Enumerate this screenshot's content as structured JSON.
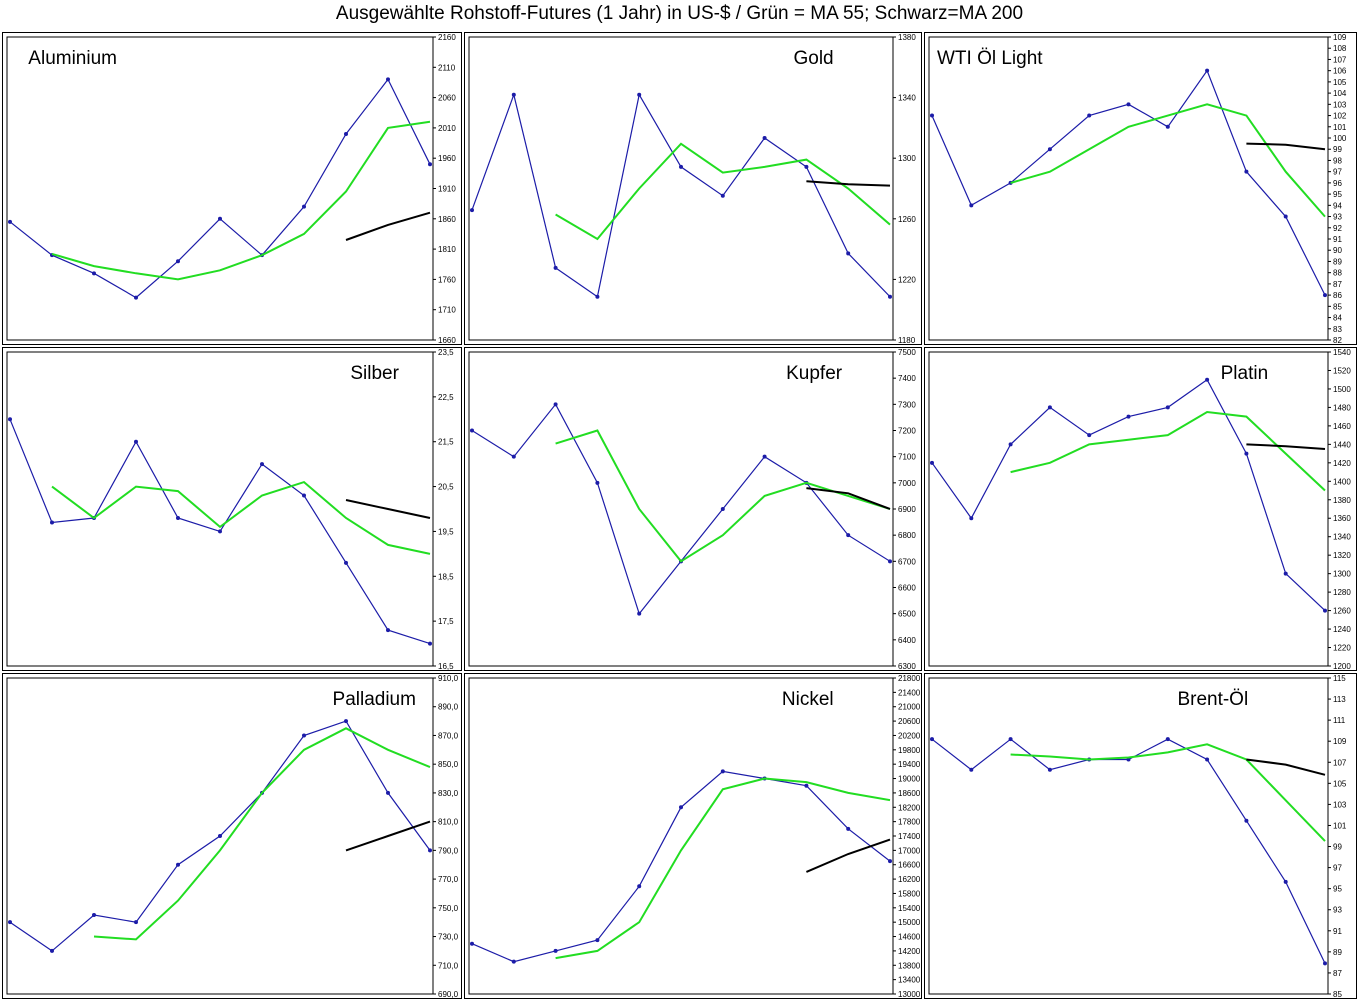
{
  "page": {
    "title": "Ausgewählte Rohstoff-Futures (1 Jahr) in US-$ / Grün = MA 55; Schwarz=MA 200"
  },
  "colors": {
    "price": "#1c1ca8",
    "ma55": "#22dd22",
    "ma200": "#000000"
  },
  "chart_data": [
    {
      "type": "line",
      "title": "Aluminium",
      "ylim": [
        1660,
        2160
      ],
      "yticks": [
        "2160",
        "2110",
        "2060",
        "2010",
        "1960",
        "1910",
        "1860",
        "1810",
        "1760",
        "1710",
        "1660"
      ],
      "x": [
        0,
        10,
        20,
        30,
        40,
        50,
        60,
        70,
        80,
        90,
        100
      ],
      "series": [
        {
          "values": [
            1855,
            1800,
            1770,
            1730,
            1790,
            1860,
            1800,
            1880,
            2000,
            2090,
            1950
          ]
        },
        {
          "values": [
            null,
            1802,
            1782,
            1770,
            1760,
            1775,
            1800,
            1835,
            1905,
            2010,
            2020
          ]
        },
        {
          "values": [
            null,
            null,
            null,
            null,
            null,
            null,
            null,
            null,
            1825,
            1850,
            1870
          ]
        }
      ]
    },
    {
      "type": "line",
      "title": "Gold",
      "ylim": [
        1180,
        1390
      ],
      "yticks": [
        "1380",
        "1340",
        "1300",
        "1260",
        "1220",
        "1180"
      ],
      "x": [
        0,
        10,
        20,
        30,
        40,
        50,
        60,
        70,
        80,
        90,
        100
      ],
      "series": [
        {
          "values": [
            1270,
            1350,
            1230,
            1210,
            1350,
            1300,
            1280,
            1320,
            1300,
            1240,
            1210
          ]
        },
        {
          "values": [
            null,
            null,
            1267,
            1250,
            1285,
            1316,
            1296,
            1300,
            1305,
            1285,
            1260
          ]
        },
        {
          "values": [
            null,
            null,
            null,
            null,
            null,
            null,
            null,
            null,
            1290,
            1288,
            1287
          ]
        }
      ]
    },
    {
      "type": "line",
      "title": "WTI Öl Light",
      "ylim": [
        82,
        109
      ],
      "yticks": [
        "109",
        "108",
        "107",
        "106",
        "105",
        "104",
        "103",
        "102",
        "101",
        "100",
        "99",
        "98",
        "97",
        "96",
        "95",
        "94",
        "93",
        "92",
        "91",
        "90",
        "89",
        "88",
        "87",
        "86",
        "85",
        "84",
        "83",
        "82"
      ],
      "x": [
        0,
        10,
        20,
        30,
        40,
        50,
        60,
        70,
        80,
        90,
        100
      ],
      "series": [
        {
          "values": [
            102,
            94,
            96,
            99,
            102,
            103,
            101,
            106,
            97,
            93,
            86
          ]
        },
        {
          "values": [
            null,
            null,
            96,
            97,
            99,
            101,
            102,
            103,
            102,
            97,
            93
          ]
        },
        {
          "values": [
            null,
            null,
            null,
            null,
            null,
            null,
            null,
            null,
            99.5,
            99.4,
            99
          ]
        }
      ]
    },
    {
      "type": "line",
      "title": "Silber",
      "ylim": [
        16.5,
        23.5
      ],
      "yticks": [
        "23,5",
        "22,5",
        "21,5",
        "20,5",
        "19,5",
        "18,5",
        "17,5",
        "16,5"
      ],
      "x": [
        0,
        10,
        20,
        30,
        40,
        50,
        60,
        70,
        80,
        90,
        100
      ],
      "series": [
        {
          "values": [
            22,
            19.7,
            19.8,
            21.5,
            19.8,
            19.5,
            21,
            20.3,
            18.8,
            17.3,
            17
          ]
        },
        {
          "values": [
            null,
            20.5,
            19.8,
            20.5,
            20.4,
            19.6,
            20.3,
            20.6,
            19.8,
            19.2,
            19
          ]
        },
        {
          "values": [
            null,
            null,
            null,
            null,
            null,
            null,
            null,
            null,
            20.2,
            20,
            19.8
          ]
        }
      ]
    },
    {
      "type": "line",
      "title": "Kupfer",
      "ylim": [
        6300,
        7500
      ],
      "yticks": [
        "7500",
        "7400",
        "7300",
        "7200",
        "7100",
        "7000",
        "6900",
        "6800",
        "6700",
        "6600",
        "6500",
        "6400",
        "6300"
      ],
      "x": [
        0,
        10,
        20,
        30,
        40,
        50,
        60,
        70,
        80,
        90,
        100
      ],
      "series": [
        {
          "values": [
            7200,
            7100,
            7300,
            7000,
            6500,
            6700,
            6900,
            7100,
            7000,
            6800,
            6700
          ]
        },
        {
          "values": [
            null,
            null,
            7150,
            7200,
            6900,
            6700,
            6800,
            6950,
            7000,
            6950,
            6900
          ]
        },
        {
          "values": [
            null,
            null,
            null,
            null,
            null,
            null,
            null,
            null,
            6980,
            6960,
            6900
          ]
        }
      ]
    },
    {
      "type": "line",
      "title": "Platin",
      "ylim": [
        1200,
        1540
      ],
      "yticks": [
        "1540",
        "1520",
        "1500",
        "1480",
        "1460",
        "1440",
        "1420",
        "1400",
        "1380",
        "1360",
        "1340",
        "1320",
        "1300",
        "1280",
        "1260",
        "1240",
        "1220",
        "1200"
      ],
      "x": [
        0,
        10,
        20,
        30,
        40,
        50,
        60,
        70,
        80,
        90,
        100
      ],
      "series": [
        {
          "values": [
            1420,
            1360,
            1440,
            1480,
            1450,
            1470,
            1480,
            1510,
            1430,
            1300,
            1260
          ]
        },
        {
          "values": [
            null,
            null,
            1410,
            1420,
            1440,
            1445,
            1450,
            1475,
            1470,
            1430,
            1390
          ]
        },
        {
          "values": [
            null,
            null,
            null,
            null,
            null,
            null,
            null,
            null,
            1440,
            1438,
            1435
          ]
        }
      ]
    },
    {
      "type": "line",
      "title": "Palladium",
      "ylim": [
        690,
        910
      ],
      "yticks": [
        "910,0",
        "890,0",
        "870,0",
        "850,0",
        "830,0",
        "810,0",
        "790,0",
        "770,0",
        "750,0",
        "730,0",
        "710,0",
        "690,0"
      ],
      "x": [
        0,
        10,
        20,
        30,
        40,
        50,
        60,
        70,
        80,
        90,
        100
      ],
      "series": [
        {
          "values": [
            740,
            720,
            745,
            740,
            780,
            800,
            830,
            870,
            880,
            830,
            790
          ]
        },
        {
          "values": [
            null,
            null,
            730,
            728,
            755,
            790,
            830,
            860,
            875,
            860,
            848
          ]
        },
        {
          "values": [
            null,
            null,
            null,
            null,
            null,
            null,
            null,
            null,
            790,
            800,
            810
          ]
        }
      ]
    },
    {
      "type": "line",
      "title": "Nickel",
      "ylim": [
        13000,
        21800
      ],
      "yticks": [
        "21800",
        "21400",
        "21000",
        "20600",
        "20200",
        "19800",
        "19400",
        "19000",
        "18600",
        "18200",
        "17800",
        "17400",
        "17000",
        "16600",
        "16200",
        "15800",
        "15400",
        "15000",
        "14600",
        "14200",
        "13800",
        "13400",
        "13000"
      ],
      "x": [
        0,
        10,
        20,
        30,
        40,
        50,
        60,
        70,
        80,
        90,
        100
      ],
      "series": [
        {
          "values": [
            14400,
            13900,
            14200,
            14500,
            16000,
            18200,
            19200,
            19000,
            18800,
            17600,
            16700
          ]
        },
        {
          "values": [
            null,
            null,
            14000,
            14200,
            15000,
            17000,
            18700,
            19000,
            18900,
            18600,
            18400
          ]
        },
        {
          "values": [
            null,
            null,
            null,
            null,
            null,
            null,
            null,
            null,
            16400,
            16900,
            17300
          ]
        }
      ]
    },
    {
      "type": "line",
      "title": "Brent-Öl",
      "ylim": [
        85,
        116
      ],
      "yticks": [
        "115",
        "113",
        "111",
        "109",
        "107",
        "105",
        "103",
        "101",
        "99",
        "97",
        "95",
        "93",
        "91",
        "89",
        "87",
        "85"
      ],
      "x": [
        0,
        10,
        20,
        30,
        40,
        50,
        60,
        70,
        80,
        90,
        100
      ],
      "series": [
        {
          "values": [
            110,
            107,
            110,
            107,
            108,
            108,
            110,
            108,
            102,
            96,
            88
          ]
        },
        {
          "values": [
            null,
            null,
            108.5,
            108.3,
            108,
            108.2,
            108.7,
            109.5,
            108,
            104,
            100
          ]
        },
        {
          "values": [
            null,
            null,
            null,
            null,
            null,
            null,
            null,
            null,
            108,
            107.5,
            106.5
          ]
        }
      ]
    }
  ]
}
